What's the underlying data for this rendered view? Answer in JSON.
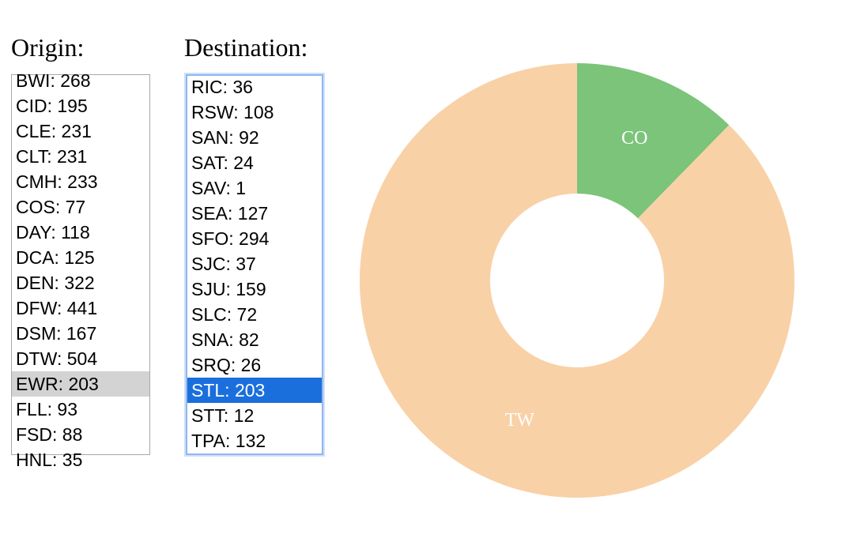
{
  "origin": {
    "label": "Origin:",
    "selected_index": 12,
    "items": [
      "BWI: 268",
      "CID: 195",
      "CLE: 231",
      "CLT: 231",
      "CMH: 233",
      "COS: 77",
      "DAY: 118",
      "DCA: 125",
      "DEN: 322",
      "DFW: 441",
      "DSM: 167",
      "DTW: 504",
      "EWR: 203",
      "FLL: 93",
      "FSD: 88",
      "HNL: 35"
    ]
  },
  "destination": {
    "label": "Destination:",
    "selected_index": 12,
    "items": [
      "RIC: 36",
      "RSW: 108",
      "SAN: 92",
      "SAT: 24",
      "SAV: 1",
      "SEA: 127",
      "SFO: 294",
      "SJC: 37",
      "SJU: 159",
      "SLC: 72",
      "SNA: 82",
      "SRQ: 26",
      "STL: 203",
      "STT: 12",
      "TPA: 132"
    ]
  },
  "chart_data": {
    "type": "pie",
    "donut": true,
    "categories": [
      "CO",
      "TW"
    ],
    "values": [
      25,
      178
    ],
    "colors": [
      "#7bc47a",
      "#f9d1a7"
    ],
    "title": ""
  }
}
